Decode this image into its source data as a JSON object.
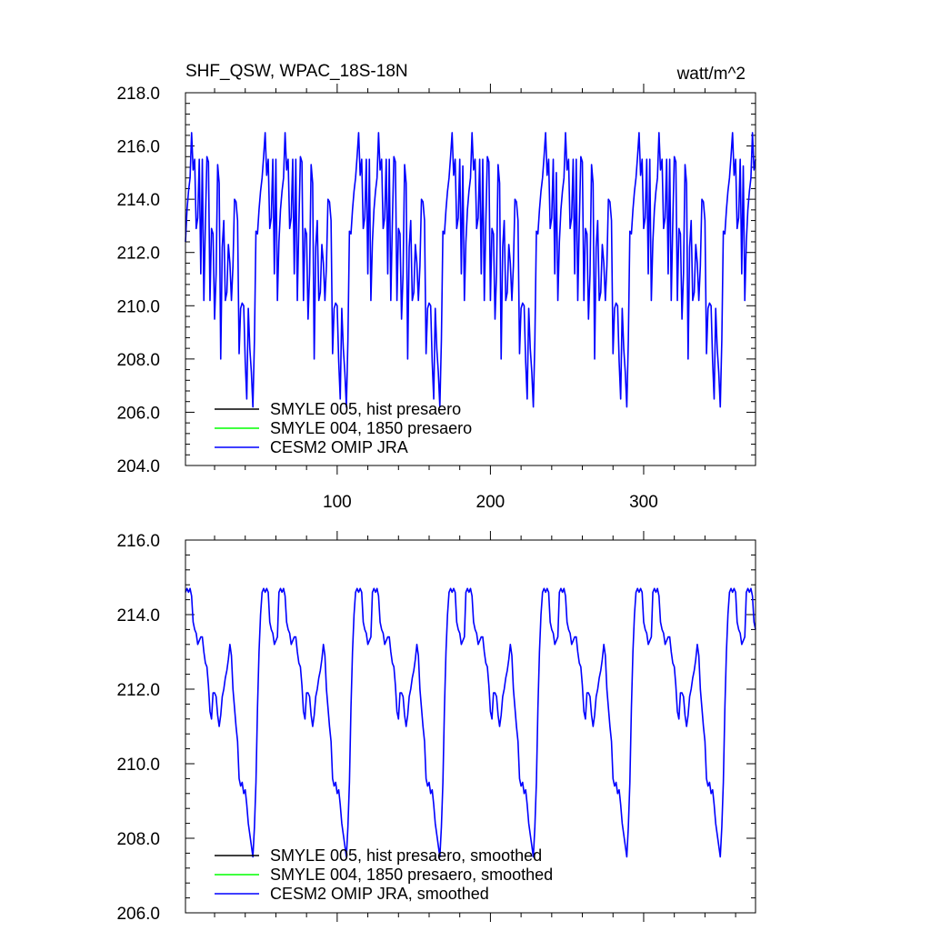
{
  "chart_data": [
    {
      "type": "line",
      "title": "SHF_QSW, WPAC_18S-18N",
      "units": "watt/m^2",
      "xlim": [
        1,
        373
      ],
      "ylim": [
        204,
        218
      ],
      "x_ticks": [
        100,
        200,
        300
      ],
      "y_ticks": [
        "204.0",
        "206.0",
        "208.0",
        "210.0",
        "212.0",
        "214.0",
        "216.0",
        "218.0"
      ],
      "grid": false,
      "legend": "bottom-left",
      "series": [
        {
          "name": "SMYLE 005, hist presaero",
          "color": "#000000",
          "values": []
        },
        {
          "name": "SMYLE 004, 1850 presaero",
          "color": "#00ff00",
          "values": []
        },
        {
          "name": "CESM2 OMIP JRA",
          "color": "#0000ff",
          "x_step": 1,
          "period": 61,
          "values": [
            212.4,
            213.6,
            214.3,
            214.8,
            216.5,
            215.1,
            215.5,
            212.9,
            213.3,
            215.5,
            211.2,
            215.5,
            210.2,
            213.1,
            215.6,
            215.4,
            210.2,
            212.9,
            212.7,
            209.5,
            211.2,
            215.3,
            214.6,
            208.0,
            212.2,
            213.2,
            210.2,
            210.5,
            212.3,
            211.6,
            210.2,
            211.5,
            214.0,
            213.9,
            213.2,
            208.2,
            209.9,
            210.1,
            210.0,
            207.9,
            206.5,
            209.9,
            208.4,
            207.5,
            206.2,
            208.7,
            212.8,
            212.7,
            213.6,
            214.3,
            214.8,
            215.6,
            216.5,
            214.9,
            215.5,
            212.9,
            213.3,
            215.5,
            211.2,
            215.5,
            210.2
          ]
        }
      ]
    },
    {
      "type": "line",
      "title": "",
      "xlim": [
        1,
        373
      ],
      "ylim": [
        206,
        216
      ],
      "x_ticks": [
        100,
        200,
        300
      ],
      "y_ticks": [
        "206.0",
        "208.0",
        "210.0",
        "212.0",
        "214.0",
        "216.0"
      ],
      "grid": false,
      "legend": "bottom-left",
      "series": [
        {
          "name": "SMYLE 005, hist presaero, smoothed",
          "color": "#000000",
          "values": []
        },
        {
          "name": "SMYLE 004, 1850 presaero, smoothed",
          "color": "#00ff00",
          "values": []
        },
        {
          "name": "CESM2 OMIP JRA, smoothed",
          "color": "#0000ff",
          "x_step": 1,
          "period": 61,
          "values": [
            214.6,
            214.7,
            214.6,
            214.7,
            214.5,
            213.8,
            213.6,
            213.5,
            213.2,
            213.3,
            213.4,
            213.4,
            213.0,
            212.7,
            212.6,
            212.1,
            211.4,
            211.2,
            211.9,
            211.9,
            211.8,
            211.3,
            211.0,
            211.3,
            211.8,
            212.0,
            212.3,
            212.5,
            212.8,
            213.2,
            212.9,
            212.0,
            211.5,
            211.0,
            210.6,
            209.6,
            209.4,
            209.5,
            209.2,
            209.3,
            208.9,
            208.4,
            208.1,
            207.8,
            207.5,
            208.3,
            209.5,
            211.5,
            213.0,
            214.0,
            214.6,
            214.7,
            214.6,
            214.7,
            214.6,
            213.8,
            213.6,
            213.5,
            213.2,
            213.3,
            213.4
          ]
        }
      ]
    }
  ]
}
